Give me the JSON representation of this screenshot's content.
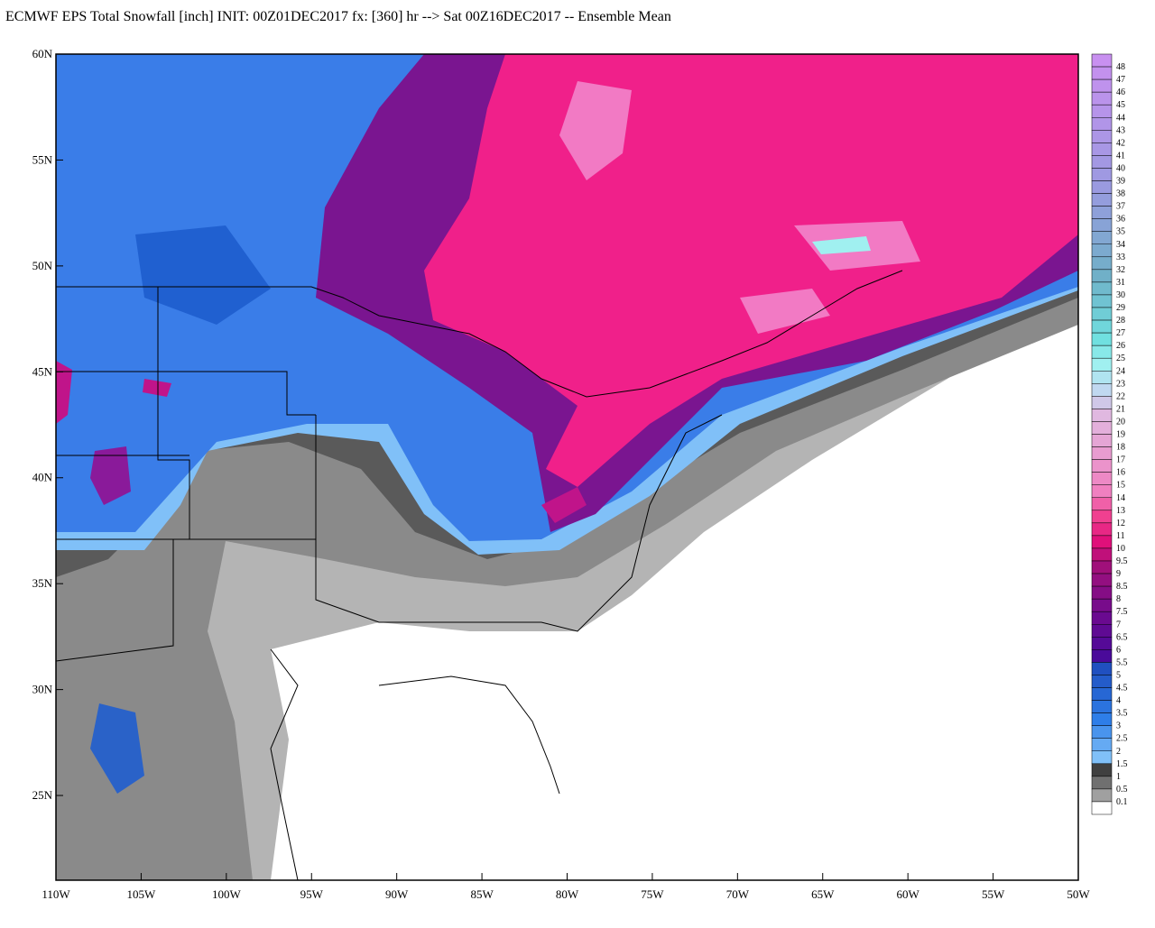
{
  "title": "ECMWF EPS Total Snowfall [inch] INIT: 00Z01DEC2017 fx: [360] hr --> Sat 00Z16DEC2017 -- Ensemble Mean",
  "map": {
    "lon_range": [
      -110,
      -50
    ],
    "lat_range": [
      21,
      60
    ],
    "lat_ticks": [
      {
        "value": 60,
        "label": "60N"
      },
      {
        "value": 55,
        "label": "55N"
      },
      {
        "value": 50,
        "label": "50N"
      },
      {
        "value": 45,
        "label": "45N"
      },
      {
        "value": 40,
        "label": "40N"
      },
      {
        "value": 35,
        "label": "35N"
      },
      {
        "value": 30,
        "label": "30N"
      },
      {
        "value": 25,
        "label": "25N"
      }
    ],
    "lon_ticks": [
      {
        "value": -110,
        "label": "110W"
      },
      {
        "value": -105,
        "label": "105W"
      },
      {
        "value": -100,
        "label": "100W"
      },
      {
        "value": -95,
        "label": "95W"
      },
      {
        "value": -90,
        "label": "90W"
      },
      {
        "value": -85,
        "label": "85W"
      },
      {
        "value": -80,
        "label": "80W"
      },
      {
        "value": -75,
        "label": "75W"
      },
      {
        "value": -70,
        "label": "70W"
      },
      {
        "value": -65,
        "label": "65W"
      },
      {
        "value": -60,
        "label": "60W"
      },
      {
        "value": -55,
        "label": "55W"
      },
      {
        "value": -50,
        "label": "50W"
      }
    ]
  },
  "colorbar": {
    "levels": [
      48,
      47,
      46,
      45,
      44,
      43,
      42,
      41,
      40,
      39,
      38,
      37,
      36,
      35,
      34,
      33,
      32,
      31,
      30,
      29,
      28,
      27,
      26,
      25,
      24,
      23,
      22,
      21,
      20,
      19,
      18,
      17,
      16,
      15,
      14,
      13,
      12,
      11,
      10,
      9.5,
      9,
      8.5,
      8,
      7.5,
      7,
      6.5,
      6,
      5.5,
      5,
      4.5,
      4,
      3.5,
      3,
      2.5,
      2,
      1.5,
      1,
      0.5,
      0.1
    ]
  }
}
